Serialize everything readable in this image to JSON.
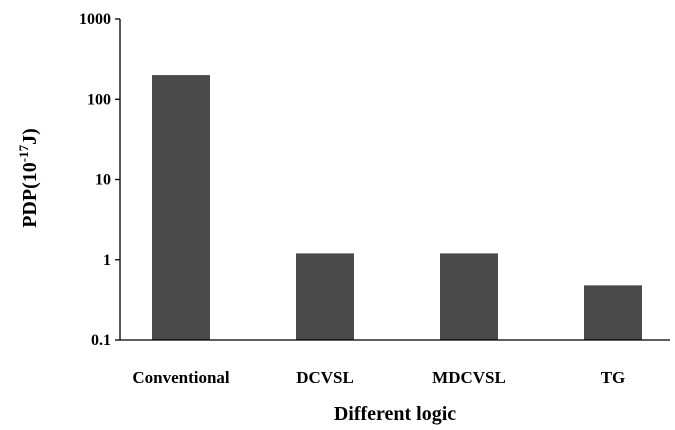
{
  "chart_data": {
    "type": "bar",
    "categories": [
      "Conventional",
      "DCVSL",
      "MDCVSL",
      "TG"
    ],
    "values": [
      200,
      1.2,
      1.2,
      0.48
    ],
    "xlabel": "Different logic",
    "ylabel": {
      "prefix": "PDP(10",
      "exponent": "-17",
      "suffix": "J)"
    },
    "yscale": "log",
    "ylim": [
      0.1,
      1000
    ],
    "yticks": [
      {
        "value": 0.1,
        "label": "0.1"
      },
      {
        "value": 1,
        "label": "1"
      },
      {
        "value": 10,
        "label": "10"
      },
      {
        "value": 100,
        "label": "100"
      },
      {
        "value": 1000,
        "label": "1000"
      }
    ],
    "bar_color": "#4a4a4a",
    "grid": false,
    "legend": "none"
  }
}
